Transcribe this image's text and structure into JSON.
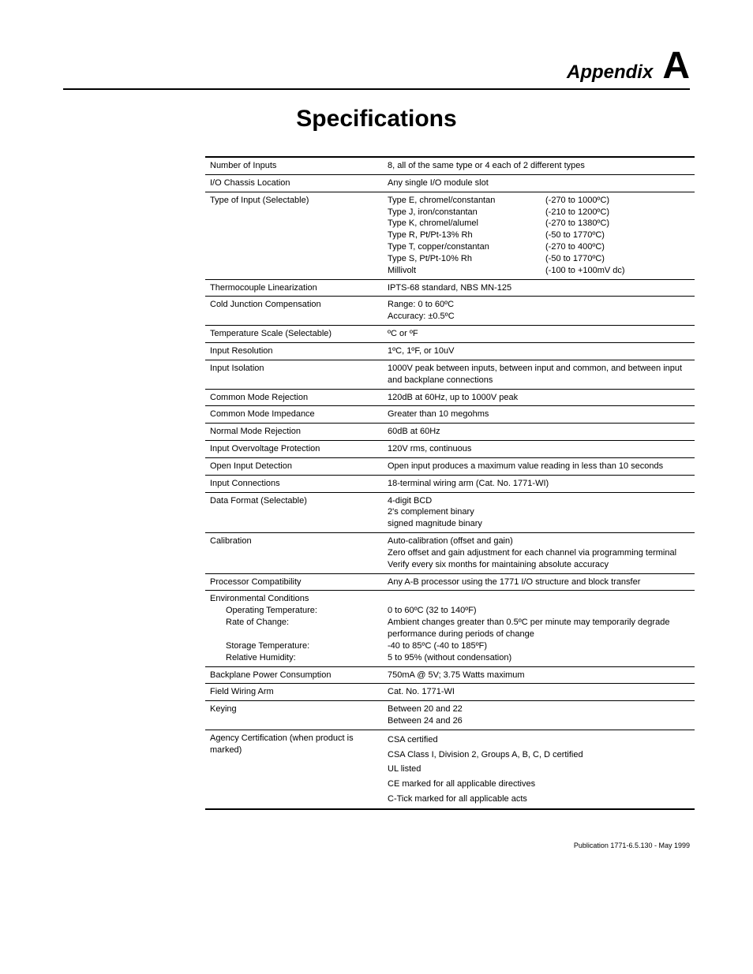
{
  "header": {
    "appendix_label": "Appendix",
    "appendix_letter": "A"
  },
  "title": "Specifications",
  "rows": [
    {
      "label": "Number of Inputs",
      "value": "8, all of the same type or 4 each of 2 different types"
    },
    {
      "label": "I/O Chassis Location",
      "value": "Any single I/O module slot"
    },
    {
      "label": "Type of Input (Selectable)",
      "type_pairs": {
        "left": [
          "Type E, chromel/constantan",
          "Type J, iron/constantan",
          "Type K, chromel/alumel",
          "Type R, Pt/Pt-13% Rh",
          "Type T, copper/constantan",
          "Type S, Pt/Pt-10% Rh",
          "Millivolt"
        ],
        "right": [
          "(-270 to 1000ºC)",
          "(-210 to 1200ºC)",
          "(-270 to 1380ºC)",
          "(-50 to 1770ºC)",
          "(-270 to 400ºC)",
          "(-50 to 1770ºC)",
          "(-100 to +100mV dc)"
        ]
      }
    },
    {
      "label": "Thermocouple Linearization",
      "value": "IPTS-68 standard, NBS MN-125"
    },
    {
      "label": "Cold Junction Compensation",
      "lines": [
        "Range:  0 to 60ºC",
        "Accuracy:  ±0.5ºC"
      ]
    },
    {
      "label": "Temperature Scale (Selectable)",
      "value": "ºC or ºF"
    },
    {
      "label": "Input Resolution",
      "value": "1ºC, 1ºF, or 10uV"
    },
    {
      "label": "Input Isolation",
      "value": "1000V peak between inputs, between input and common, and between input and backplane connections"
    },
    {
      "label": "Common Mode Rejection",
      "value": "120dB at 60Hz, up to 1000V peak"
    },
    {
      "label": "Common Mode Impedance",
      "value": "Greater than 10 megohms"
    },
    {
      "label": "Normal Mode Rejection",
      "value": "60dB at 60Hz"
    },
    {
      "label": "Input Overvoltage Protection",
      "value": "120V rms, continuous"
    },
    {
      "label": "Open Input Detection",
      "value": "Open input produces a maximum value reading in less than 10 seconds"
    },
    {
      "label": "Input Connections",
      "value": "18-terminal wiring arm (Cat. No. 1771-WI)"
    },
    {
      "label": "Data Format (Selectable)",
      "lines": [
        "4-digit BCD",
        "2's complement binary",
        "signed magnitude binary"
      ]
    },
    {
      "label": "Calibration",
      "lines": [
        "Auto-calibration (offset and gain)",
        "Zero offset and gain adjustment for each channel via programming terminal",
        "Verify every six months for maintaining absolute accuracy"
      ]
    },
    {
      "label": "Processor Compatibility",
      "value": "Any A-B processor using the 1771 I/O structure and block transfer"
    },
    {
      "label_multi": {
        "title": "Environmental Conditions",
        "sub": [
          "Operating Temperature:",
          "Rate of Change:",
          "",
          "Storage Temperature:",
          "Relative Humidity:"
        ]
      },
      "lines": [
        "",
        "0 to 60ºC  (32 to 140ºF)",
        "Ambient changes greater than 0.5ºC per minute may temporarily degrade  performance during periods of change",
        "-40 to 85ºC (-40 to 185ºF)",
        "5 to 95% (without condensation)"
      ]
    },
    {
      "label": "Backplane Power Consumption",
      "value": "750mA @ 5V; 3.75 Watts maximum"
    },
    {
      "label": "Field Wiring Arm",
      "value": "Cat. No. 1771-WI"
    },
    {
      "label": "Keying",
      "lines": [
        "Between 20 and 22",
        "Between 24 and 26"
      ]
    },
    {
      "label": "Agency Certification (when product is marked)",
      "cert_lines": [
        "CSA certified",
        "CSA Class I, Division 2, Groups A, B, C, D certified",
        "UL listed",
        "CE marked for all applicable directives",
        "C-Tick marked for all applicable acts"
      ]
    }
  ],
  "footer": "Publication 1771-6.5.130 - May 1999"
}
